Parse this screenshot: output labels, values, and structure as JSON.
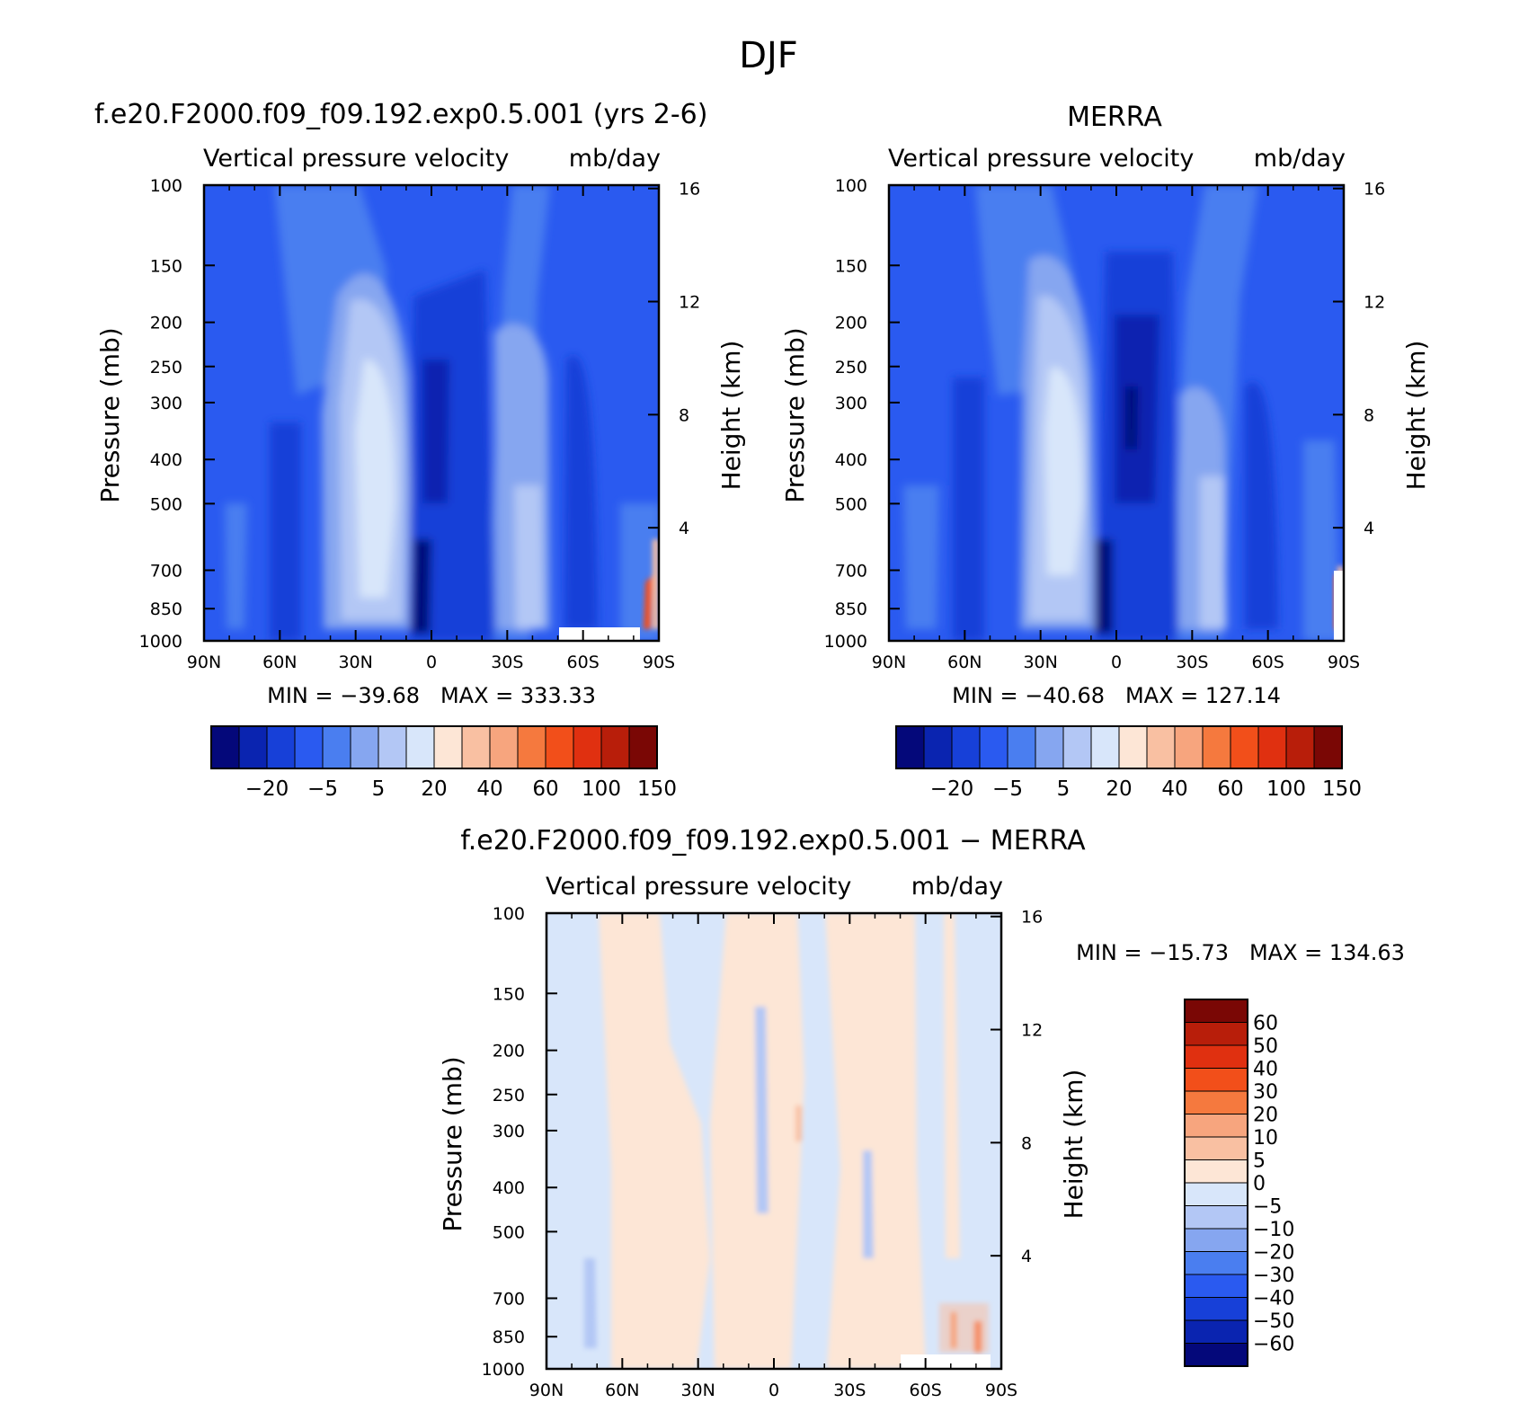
{
  "figure": {
    "title": "DJF"
  },
  "colors": {
    "main_scale": [
      "#04087a",
      "#0a24b0",
      "#1740d8",
      "#2a5af0",
      "#4a7ef0",
      "#86a6f0",
      "#b3c7f5",
      "#d8e6fa",
      "#fde6d6",
      "#f9c0a2",
      "#f7a57e",
      "#f5793e",
      "#f24f1a",
      "#e03010",
      "#b81e0a",
      "#7a0705"
    ],
    "diff_scale": [
      "#04087a",
      "#0a24b0",
      "#1740d8",
      "#2a5af0",
      "#4a7ef0",
      "#86a6f0",
      "#b3c7f5",
      "#d8e6fa",
      "#fde6d6",
      "#f9c0a2",
      "#f7a57e",
      "#f5793e",
      "#f24f1a",
      "#e03010",
      "#b81e0a",
      "#7a0705"
    ]
  },
  "chart_data": [
    {
      "type": "heatmap",
      "title": "f.e20.F2000.f09_f09.192.exp0.5.001 (yrs 2-6)",
      "subtitle_left": "Vertical pressure velocity",
      "subtitle_right": "mb/day",
      "ylabel": "Pressure (mb)",
      "ylabel_right": "Height (km)",
      "x_ticks": [
        "90N",
        "60N",
        "30N",
        "0",
        "30S",
        "60S",
        "90S"
      ],
      "x_range": [
        90,
        -90
      ],
      "y_ticks": [
        100,
        150,
        200,
        250,
        300,
        400,
        500,
        700,
        850,
        1000
      ],
      "y_range": [
        100,
        1000
      ],
      "y_scale": "log",
      "height_ticks": [
        16,
        12,
        8,
        4
      ],
      "stats": "MIN = −39.68   MAX = 333.33",
      "colorbar_labels": [
        "−20",
        "−5",
        "5",
        "20",
        "40",
        "60",
        "100",
        "150"
      ],
      "colorbar_orientation": "horizontal",
      "grid": false
    },
    {
      "type": "heatmap",
      "title": "MERRA",
      "subtitle_left": "Vertical pressure velocity",
      "subtitle_right": "mb/day",
      "ylabel": "Pressure (mb)",
      "ylabel_right": "Height (km)",
      "x_ticks": [
        "90N",
        "60N",
        "30N",
        "0",
        "30S",
        "60S",
        "90S"
      ],
      "x_range": [
        90,
        -90
      ],
      "y_ticks": [
        100,
        150,
        200,
        250,
        300,
        400,
        500,
        700,
        850,
        1000
      ],
      "y_range": [
        100,
        1000
      ],
      "y_scale": "log",
      "height_ticks": [
        16,
        12,
        8,
        4
      ],
      "stats": "MIN = −40.68   MAX = 127.14",
      "colorbar_labels": [
        "−20",
        "−5",
        "5",
        "20",
        "40",
        "60",
        "100",
        "150"
      ],
      "colorbar_orientation": "horizontal",
      "grid": false
    },
    {
      "type": "heatmap",
      "title": "f.e20.F2000.f09_f09.192.exp0.5.001 − MERRA",
      "subtitle_left": "Vertical pressure velocity",
      "subtitle_right": "mb/day",
      "ylabel": "Pressure (mb)",
      "ylabel_right": "Height (km)",
      "x_ticks": [
        "90N",
        "60N",
        "30N",
        "0",
        "30S",
        "60S",
        "90S"
      ],
      "x_range": [
        90,
        -90
      ],
      "y_ticks": [
        100,
        150,
        200,
        250,
        300,
        400,
        500,
        700,
        850,
        1000
      ],
      "y_range": [
        100,
        1000
      ],
      "y_scale": "log",
      "height_ticks": [
        16,
        12,
        8,
        4
      ],
      "stats": "MIN = −15.73   MAX = 134.63",
      "colorbar_labels": [
        "60",
        "50",
        "40",
        "30",
        "20",
        "10",
        "5",
        "0",
        "−5",
        "−10",
        "−20",
        "−30",
        "−40",
        "−50",
        "−60"
      ],
      "colorbar_orientation": "vertical",
      "grid": false
    }
  ]
}
